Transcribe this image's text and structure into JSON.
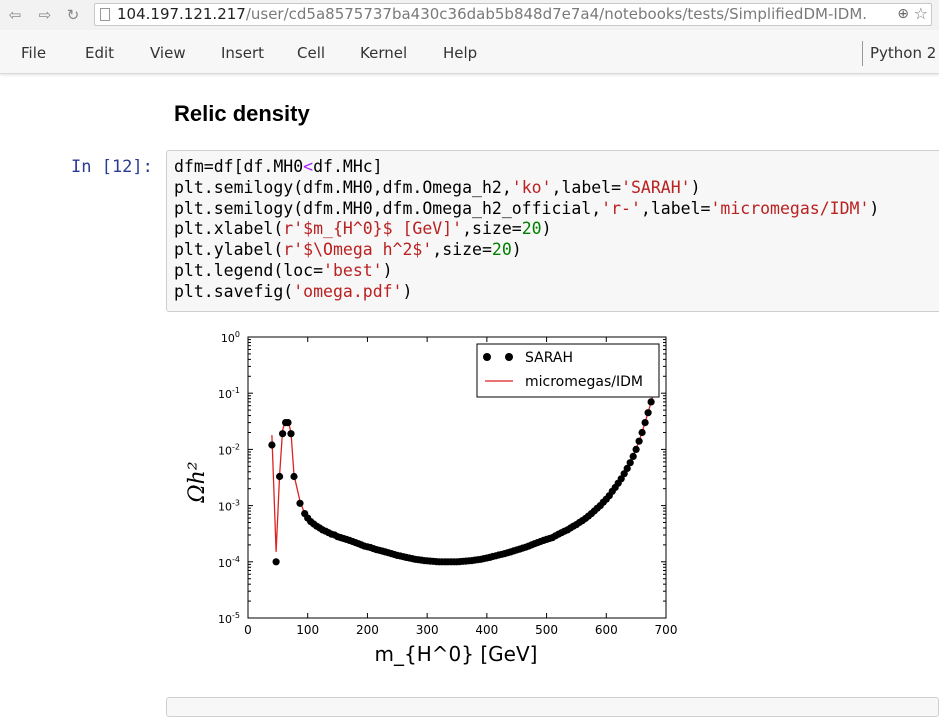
{
  "browser": {
    "url_host": "104.197.121.217",
    "url_path": "/user/cd5a8575737ba430c36dab5b848d7e7a4/notebooks/tests/SimplifiedDM-IDM.",
    "icons": [
      "back-arrow-icon",
      "forward-arrow-icon",
      "reload-icon",
      "page-icon",
      "zoom-icon",
      "star-icon"
    ]
  },
  "menubar": {
    "items": [
      "File",
      "Edit",
      "View",
      "Insert",
      "Cell",
      "Kernel",
      "Help"
    ],
    "kernel": "Python 2"
  },
  "notebook": {
    "heading": "Relic density",
    "prompt": "In [12]:",
    "code_lines": [
      "dfm=df[df.MH0<df.MHc]",
      "plt.semilogy(dfm.MH0,dfm.Omega_h2,'ko',label='SARAH')",
      "plt.semilogy(dfm.MH0,dfm.Omega_h2_official,'r-',label='micromegas/IDM')",
      "plt.xlabel(r'$m_{H^0}$ [GeV]',size=20)",
      "plt.ylabel(r'$\\Omega h^2$',size=20)",
      "plt.legend(loc='best')",
      "plt.savefig('omega.pdf')"
    ]
  },
  "chart_data": {
    "type": "scatter",
    "xlabel": "m_{H^0} [GeV]",
    "ylabel": "Ωh²",
    "yscale": "log",
    "xlim": [
      0,
      700
    ],
    "ylim": [
      1e-05,
      1
    ],
    "xticks": [
      "0",
      "100",
      "200",
      "300",
      "400",
      "500",
      "600",
      "700"
    ],
    "yticks_exp": [
      "0",
      "-1",
      "-2",
      "-3",
      "-4",
      "-5"
    ],
    "legend_position": "top-right",
    "colors": {
      "points": "#000000",
      "line": "#dd2222"
    },
    "series": [
      {
        "name": "SARAH",
        "marker": "circle",
        "points": [
          [
            40,
            0.012
          ],
          [
            47,
            0.0001
          ],
          [
            53,
            0.0033
          ],
          [
            58,
            0.019
          ],
          [
            63,
            0.03
          ],
          [
            67,
            0.03
          ],
          [
            72,
            0.019
          ],
          [
            77,
            0.0033
          ],
          [
            87,
            0.0011
          ],
          [
            95,
            0.00072
          ],
          [
            100,
            0.0006
          ],
          [
            105,
            0.00052
          ],
          [
            110,
            0.00047
          ],
          [
            115,
            0.00043
          ],
          [
            120,
            0.0004
          ],
          [
            125,
            0.00037
          ],
          [
            130,
            0.00035
          ],
          [
            135,
            0.00033
          ],
          [
            140,
            0.00031
          ],
          [
            145,
            0.0003
          ],
          [
            150,
            0.00028
          ],
          [
            155,
            0.00027
          ],
          [
            160,
            0.00026
          ],
          [
            165,
            0.00025
          ],
          [
            170,
            0.00024
          ],
          [
            175,
            0.00023
          ],
          [
            180,
            0.00022
          ],
          [
            185,
            0.00021
          ],
          [
            190,
            0.0002
          ],
          [
            195,
            0.00019
          ],
          [
            200,
            0.000185
          ],
          [
            205,
            0.00018
          ],
          [
            210,
            0.000172
          ],
          [
            215,
            0.000165
          ],
          [
            220,
            0.00016
          ],
          [
            225,
            0.000155
          ],
          [
            230,
            0.00015
          ],
          [
            235,
            0.000145
          ],
          [
            240,
            0.00014
          ],
          [
            245,
            0.000135
          ],
          [
            250,
            0.00013
          ],
          [
            255,
            0.000127
          ],
          [
            260,
            0.000123
          ],
          [
            265,
            0.00012
          ],
          [
            270,
            0.000117
          ],
          [
            275,
            0.000114
          ],
          [
            280,
            0.000111
          ],
          [
            285,
            0.000109
          ],
          [
            290,
            0.000107
          ],
          [
            295,
            0.000105
          ],
          [
            300,
            0.000104
          ],
          [
            305,
            0.000103
          ],
          [
            310,
            0.000102
          ],
          [
            315,
            0.000101
          ],
          [
            320,
            0.0001
          ],
          [
            325,
            0.0001
          ],
          [
            330,
            0.0001
          ],
          [
            335,
            0.0001
          ],
          [
            340,
            0.0001
          ],
          [
            345,
            0.0001
          ],
          [
            350,
            0.0001
          ],
          [
            355,
            0.000101
          ],
          [
            360,
            0.000102
          ],
          [
            365,
            0.000103
          ],
          [
            370,
            0.000104
          ],
          [
            375,
            0.000105
          ],
          [
            380,
            0.000107
          ],
          [
            385,
            0.000109
          ],
          [
            390,
            0.000111
          ],
          [
            395,
            0.000114
          ],
          [
            400,
            0.000117
          ],
          [
            405,
            0.00012
          ],
          [
            410,
            0.000124
          ],
          [
            415,
            0.000128
          ],
          [
            420,
            0.000132
          ],
          [
            425,
            0.000136
          ],
          [
            430,
            0.00014
          ],
          [
            435,
            0.000145
          ],
          [
            440,
            0.00015
          ],
          [
            445,
            0.000156
          ],
          [
            450,
            0.000162
          ],
          [
            455,
            0.000168
          ],
          [
            460,
            0.000175
          ],
          [
            465,
            0.000182
          ],
          [
            470,
            0.00019
          ],
          [
            475,
            0.0002
          ],
          [
            480,
            0.00021
          ],
          [
            485,
            0.00022
          ],
          [
            490,
            0.00023
          ],
          [
            495,
            0.00024
          ],
          [
            500,
            0.00025
          ],
          [
            505,
            0.00026
          ],
          [
            510,
            0.00027
          ],
          [
            515,
            0.00029
          ],
          [
            520,
            0.00031
          ],
          [
            525,
            0.00033
          ],
          [
            530,
            0.00035
          ],
          [
            535,
            0.00037
          ],
          [
            540,
            0.0004
          ],
          [
            545,
            0.00043
          ],
          [
            550,
            0.00046
          ],
          [
            555,
            0.0005
          ],
          [
            560,
            0.00054
          ],
          [
            565,
            0.00059
          ],
          [
            570,
            0.00065
          ],
          [
            575,
            0.00072
          ],
          [
            580,
            0.0008
          ],
          [
            585,
            0.0009
          ],
          [
            590,
            0.001
          ],
          [
            595,
            0.00115
          ],
          [
            600,
            0.0013
          ],
          [
            605,
            0.0015
          ],
          [
            610,
            0.0018
          ],
          [
            615,
            0.0021
          ],
          [
            620,
            0.0025
          ],
          [
            625,
            0.003
          ],
          [
            630,
            0.0037
          ],
          [
            635,
            0.0046
          ],
          [
            640,
            0.0058
          ],
          [
            645,
            0.0075
          ],
          [
            650,
            0.01
          ],
          [
            655,
            0.014
          ],
          [
            660,
            0.02
          ],
          [
            665,
            0.03
          ],
          [
            670,
            0.045
          ],
          [
            675,
            0.07
          ],
          [
            680,
            0.11
          ]
        ]
      },
      {
        "name": "micromegas/IDM",
        "line": "solid",
        "points": [
          [
            40,
            0.018
          ],
          [
            47,
            0.00015
          ],
          [
            53,
            0.0035
          ],
          [
            58,
            0.022
          ],
          [
            63,
            0.033
          ],
          [
            67,
            0.033
          ],
          [
            72,
            0.02
          ],
          [
            77,
            0.0035
          ],
          [
            87,
            0.0012
          ],
          [
            95,
            0.00072
          ],
          [
            110,
            0.00047
          ],
          [
            130,
            0.00035
          ],
          [
            150,
            0.00028
          ],
          [
            175,
            0.00023
          ],
          [
            200,
            0.000185
          ],
          [
            225,
            0.000155
          ],
          [
            250,
            0.00013
          ],
          [
            275,
            0.000114
          ],
          [
            300,
            0.000104
          ],
          [
            320,
            0.0001
          ],
          [
            350,
            0.0001
          ],
          [
            375,
            0.000105
          ],
          [
            400,
            0.000117
          ],
          [
            425,
            0.000136
          ],
          [
            450,
            0.000162
          ],
          [
            475,
            0.0002
          ],
          [
            500,
            0.00025
          ],
          [
            525,
            0.00033
          ],
          [
            550,
            0.00046
          ],
          [
            575,
            0.00072
          ],
          [
            600,
            0.0013
          ],
          [
            620,
            0.0025
          ],
          [
            640,
            0.0058
          ],
          [
            655,
            0.014
          ],
          [
            665,
            0.03
          ],
          [
            675,
            0.07
          ],
          [
            680,
            0.11
          ]
        ]
      }
    ]
  }
}
